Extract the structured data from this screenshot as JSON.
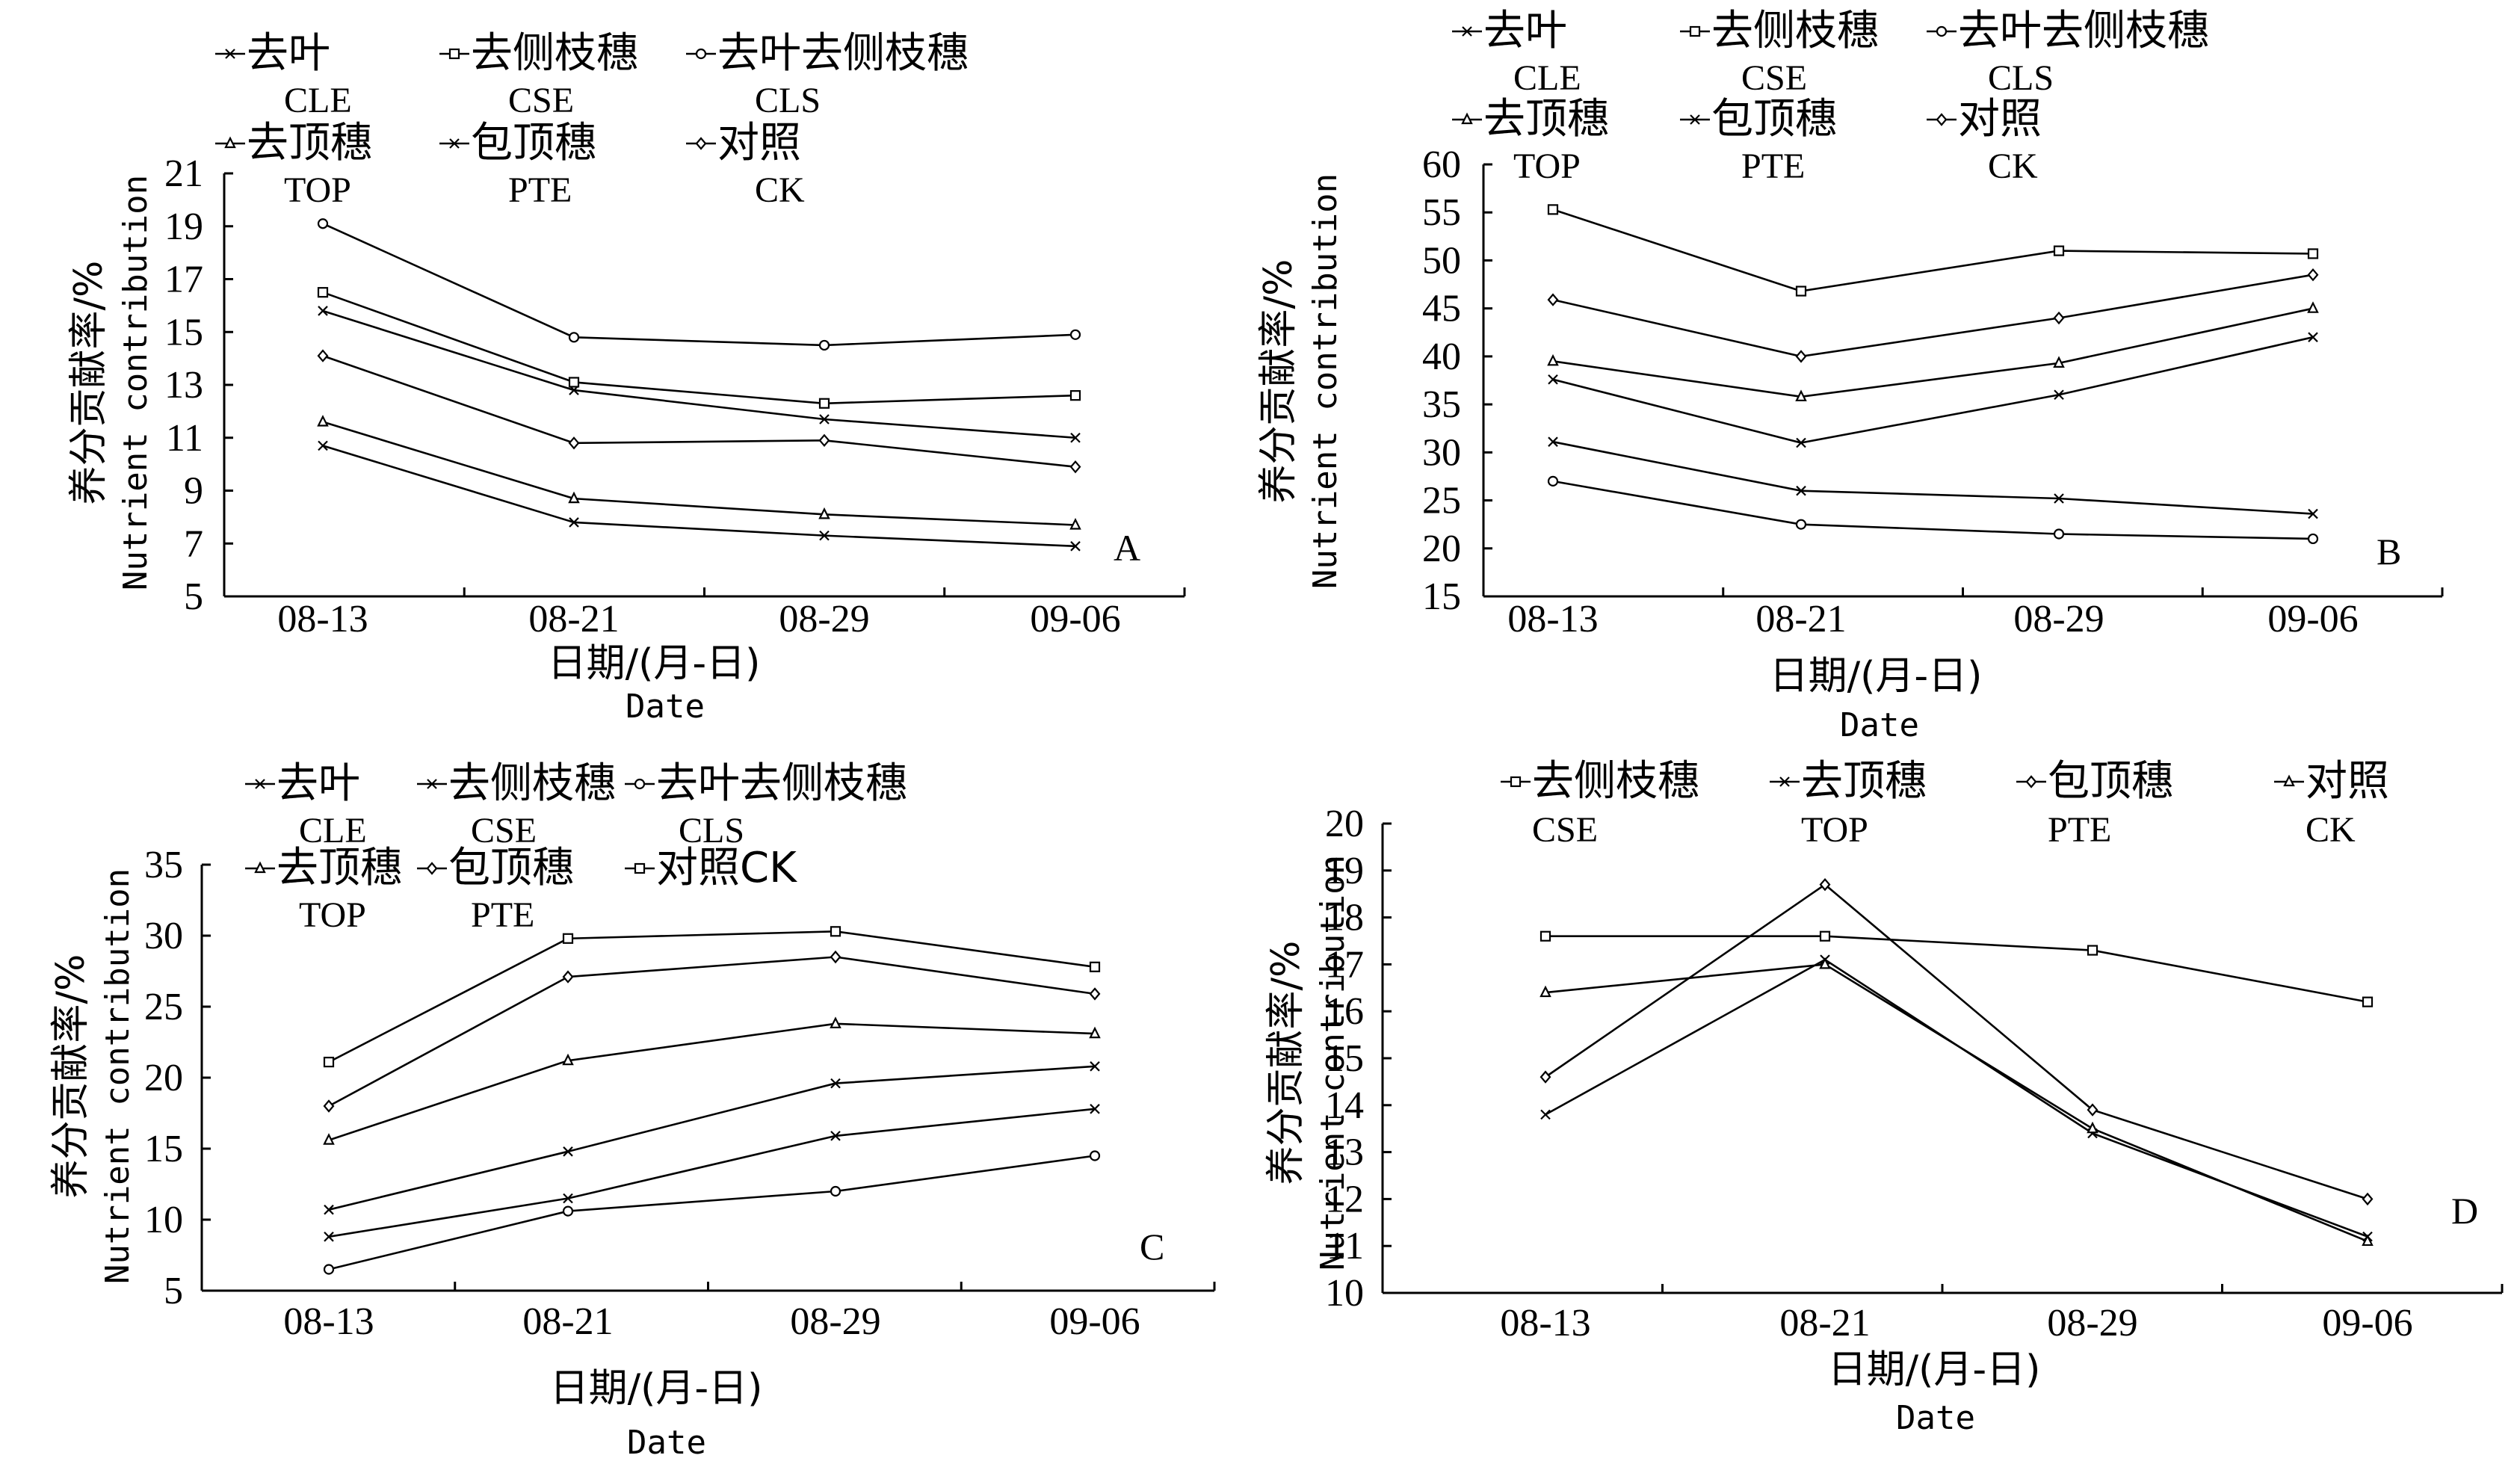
{
  "chart_data": [
    {
      "type": "line",
      "panel_letter": "A",
      "categories": [
        "08-13",
        "08-21",
        "08-29",
        "09-06"
      ],
      "ylim": [
        5,
        21
      ],
      "yticks": [
        5,
        7,
        9,
        11,
        13,
        15,
        17,
        19,
        21
      ],
      "ylabel_cn": "养分贡献率/%",
      "ylabel_en": "Nutrient contribution",
      "xlabel_cn": "日期/(月-日)",
      "xlabel_en": "Date",
      "series": [
        {
          "name_cn": "去叶",
          "name_en": "CLE",
          "marker": "x",
          "values": [
            15.8,
            12.8,
            11.7,
            11.0
          ]
        },
        {
          "name_cn": "去侧枝穗",
          "name_en": "CSE",
          "marker": "square",
          "values": [
            16.5,
            13.1,
            12.3,
            12.6
          ]
        },
        {
          "name_cn": "去叶去侧枝穗",
          "name_en": "CLS",
          "marker": "circle",
          "values": [
            19.1,
            14.8,
            14.5,
            14.9
          ]
        },
        {
          "name_cn": "去顶穗",
          "name_en": "TOP",
          "marker": "triangle",
          "values": [
            11.6,
            8.7,
            8.1,
            7.7
          ]
        },
        {
          "name_cn": "包顶穗",
          "name_en": "PTE",
          "marker": "x",
          "values": [
            10.7,
            7.8,
            7.3,
            6.9
          ]
        },
        {
          "name_cn": "对照",
          "name_en": "CK",
          "marker": "diamond",
          "values": [
            14.1,
            10.8,
            10.9,
            9.9
          ]
        }
      ],
      "legend": [
        {
          "name_cn": "去叶",
          "name_en": "CLE",
          "marker": "x"
        },
        {
          "name_cn": "去侧枝穗",
          "name_en": "CSE",
          "marker": "square"
        },
        {
          "name_cn": "去叶去侧枝穗",
          "name_en": "CLS",
          "marker": "circle"
        },
        {
          "name_cn": "去顶穗",
          "name_en": "TOP",
          "marker": "triangle"
        },
        {
          "name_cn": "包顶穗",
          "name_en": "PTE",
          "marker": "x"
        },
        {
          "name_cn": "对照",
          "name_en": "CK",
          "marker": "diamond"
        }
      ]
    },
    {
      "type": "line",
      "panel_letter": "B",
      "categories": [
        "08-13",
        "08-21",
        "08-29",
        "09-06"
      ],
      "ylim": [
        15,
        60
      ],
      "yticks": [
        15,
        20,
        25,
        30,
        35,
        40,
        45,
        50,
        55,
        60
      ],
      "ylabel_cn": "养分贡献率/%",
      "ylabel_en": "Nutrient contribution",
      "xlabel_cn": "日期/(月-日)",
      "xlabel_en": "Date",
      "series": [
        {
          "name_cn": "去叶",
          "name_en": "CLE",
          "marker": "x",
          "values": [
            37.6,
            31.0,
            36.0,
            42.0
          ]
        },
        {
          "name_cn": "去侧枝穗",
          "name_en": "CSE",
          "marker": "square",
          "values": [
            55.3,
            46.8,
            51.0,
            50.7
          ]
        },
        {
          "name_cn": "去叶去侧枝穗",
          "name_en": "CLS",
          "marker": "circle",
          "values": [
            27.0,
            22.5,
            21.5,
            21.0
          ]
        },
        {
          "name_cn": "去顶穗",
          "name_en": "TOP",
          "marker": "triangle",
          "values": [
            39.5,
            35.8,
            39.3,
            45.0
          ]
        },
        {
          "name_cn": "包顶穗",
          "name_en": "PTE",
          "marker": "x",
          "values": [
            31.1,
            26.0,
            25.2,
            23.6
          ]
        },
        {
          "name_cn": "对照",
          "name_en": "CK",
          "marker": "diamond",
          "values": [
            45.9,
            40.0,
            44.0,
            48.5
          ]
        }
      ],
      "legend": [
        {
          "name_cn": "去叶",
          "name_en": "CLE",
          "marker": "x"
        },
        {
          "name_cn": "去侧枝穗",
          "name_en": "CSE",
          "marker": "square"
        },
        {
          "name_cn": "去叶去侧枝穗",
          "name_en": "CLS",
          "marker": "circle"
        },
        {
          "name_cn": "去顶穗",
          "name_en": "TOP",
          "marker": "triangle"
        },
        {
          "name_cn": "包顶穗",
          "name_en": "PTE",
          "marker": "x"
        },
        {
          "name_cn": "对照",
          "name_en": "CK",
          "marker": "diamond"
        }
      ]
    },
    {
      "type": "line",
      "panel_letter": "C",
      "categories": [
        "08-13",
        "08-21",
        "08-29",
        "09-06"
      ],
      "ylim": [
        5,
        35
      ],
      "yticks": [
        5,
        10,
        15,
        20,
        25,
        30,
        35
      ],
      "ylabel_cn": "养分贡献率/%",
      "ylabel_en": "Nutrient contribution",
      "xlabel_cn": "日期/(月-日)",
      "xlabel_en": "Date",
      "series": [
        {
          "name_cn": "去叶",
          "name_en": "CLE",
          "marker": "x",
          "values": [
            8.8,
            11.5,
            15.9,
            17.8
          ]
        },
        {
          "name_cn": "去侧枝穗",
          "name_en": "CSE",
          "marker": "x",
          "values": [
            10.7,
            14.8,
            19.6,
            20.8
          ]
        },
        {
          "name_cn": "去叶去侧枝穗",
          "name_en": "CLS",
          "marker": "circle",
          "values": [
            6.5,
            10.6,
            12.0,
            14.5
          ]
        },
        {
          "name_cn": "去顶穗",
          "name_en": "TOP",
          "marker": "triangle",
          "values": [
            15.6,
            21.2,
            23.8,
            23.1
          ]
        },
        {
          "name_cn": "包顶穗",
          "name_en": "PTE",
          "marker": "diamond",
          "values": [
            18.0,
            27.1,
            28.5,
            25.9
          ]
        },
        {
          "name_cn": "对照",
          "name_en": "CK",
          "marker": "square",
          "values": [
            21.1,
            29.8,
            30.3,
            27.8
          ]
        }
      ],
      "legend": [
        {
          "name_cn": "去叶",
          "name_en": "CLE",
          "marker": "x"
        },
        {
          "name_cn": "去侧枝穗",
          "name_en": "CSE",
          "marker": "x"
        },
        {
          "name_cn": "去叶去侧枝穗",
          "name_en": "CLS",
          "marker": "circle"
        },
        {
          "name_cn": "去顶穗",
          "name_en": "TOP",
          "marker": "triangle"
        },
        {
          "name_cn": "包顶穗",
          "name_en": "PTE",
          "marker": "diamond"
        },
        {
          "name_cn": "对照CK",
          "name_en": "",
          "marker": "square"
        }
      ]
    },
    {
      "type": "line",
      "panel_letter": "D",
      "categories": [
        "08-13",
        "08-21",
        "08-29",
        "09-06"
      ],
      "ylim": [
        10,
        20
      ],
      "yticks": [
        10,
        11,
        12,
        13,
        14,
        15,
        16,
        17,
        18,
        19,
        20
      ],
      "ylabel_cn": "养分贡献率/%",
      "ylabel_en": "Nutrient contribution",
      "xlabel_cn": "日期/(月-日)",
      "xlabel_en": "Date",
      "series": [
        {
          "name_cn": "去侧枝穗",
          "name_en": "CSE",
          "marker": "square",
          "values": [
            17.6,
            17.6,
            17.3,
            16.2
          ]
        },
        {
          "name_cn": "去顶穗",
          "name_en": "TOP",
          "marker": "x",
          "values": [
            13.8,
            17.1,
            13.4,
            11.2
          ]
        },
        {
          "name_cn": "包顶穗",
          "name_en": "PTE",
          "marker": "diamond",
          "values": [
            14.6,
            18.7,
            13.9,
            12.0
          ]
        },
        {
          "name_cn": "对照",
          "name_en": "CK",
          "marker": "triangle",
          "values": [
            16.4,
            17.0,
            13.5,
            11.1
          ]
        }
      ],
      "legend": [
        {
          "name_cn": "去侧枝穗",
          "name_en": "CSE",
          "marker": "square"
        },
        {
          "name_cn": "去顶穗",
          "name_en": "TOP",
          "marker": "x"
        },
        {
          "name_cn": "包顶穗",
          "name_en": "PTE",
          "marker": "diamond"
        },
        {
          "name_cn": "对照",
          "name_en": "CK",
          "marker": "triangle"
        }
      ]
    }
  ]
}
